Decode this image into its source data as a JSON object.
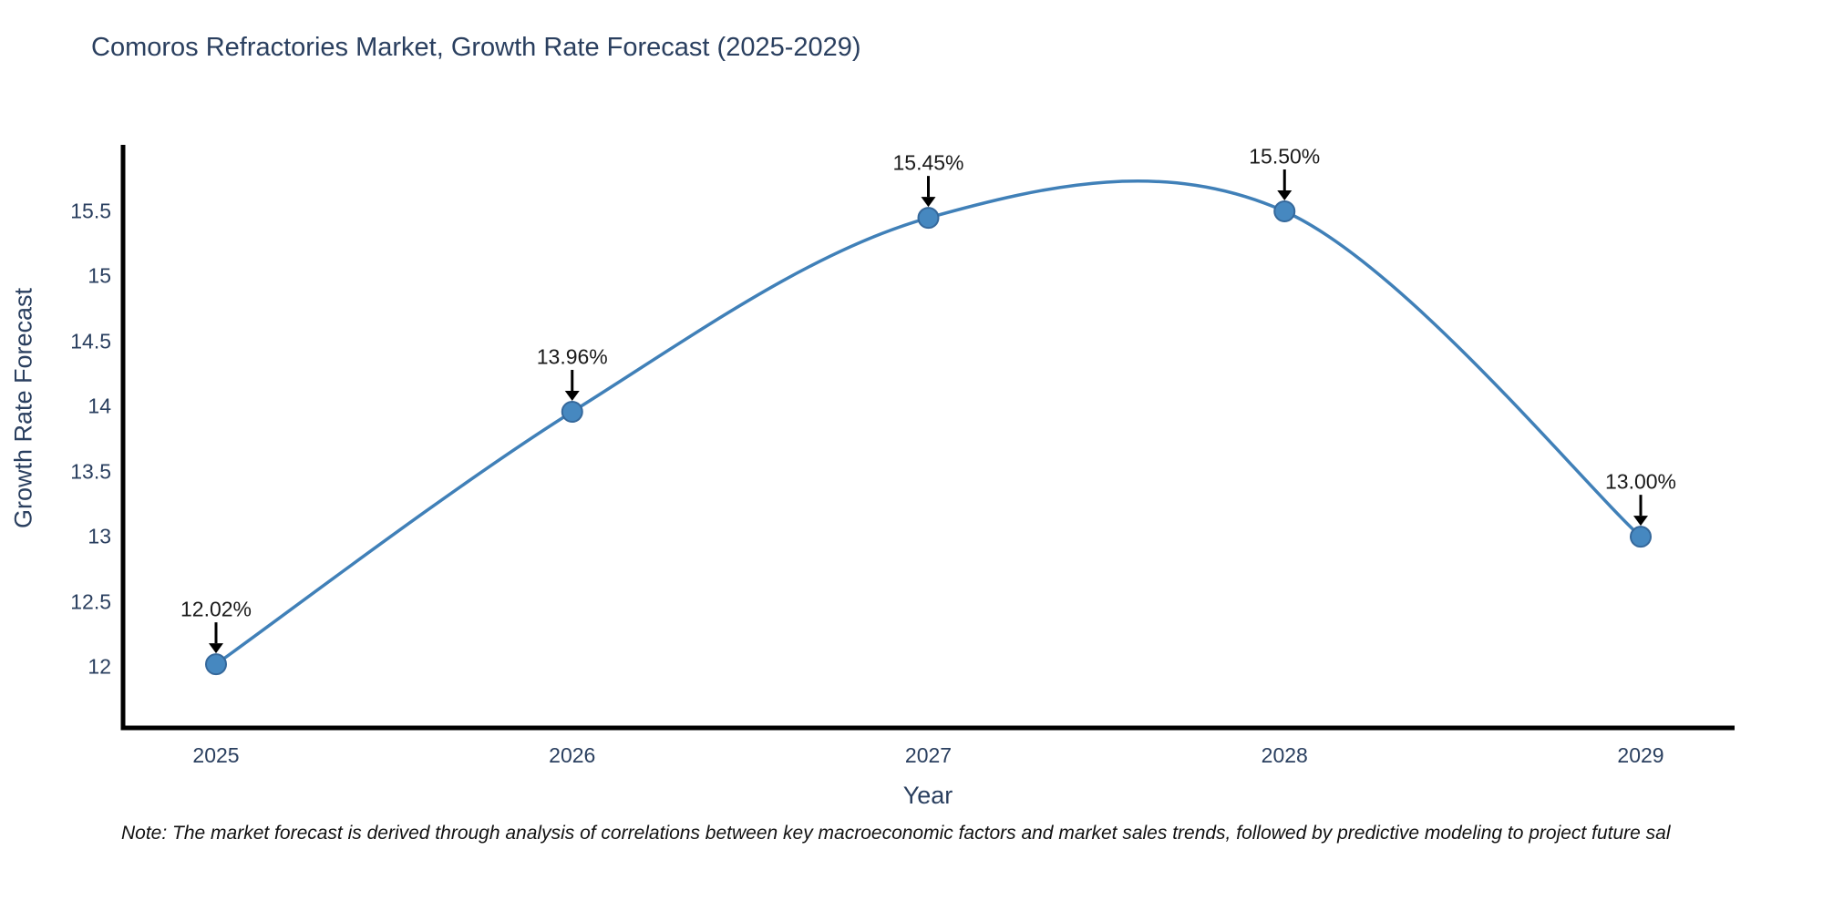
{
  "figure": {
    "note": "Note: The market forecast is derived through analysis of correlations between key macroeconomic factors and market sales trends, followed by predictive modeling to project future sal"
  },
  "chart_data": {
    "type": "line",
    "title": "Comoros Refractories Market, Growth Rate Forecast (2025-2029)",
    "xlabel": "Year",
    "ylabel": "Growth Rate Forecast",
    "categories": [
      "2025",
      "2026",
      "2027",
      "2028",
      "2029"
    ],
    "values": [
      12.02,
      13.96,
      15.45,
      15.5,
      13.0
    ],
    "point_labels": [
      "12.02%",
      "13.96%",
      "15.45%",
      "15.50%",
      "13.00%"
    ],
    "yticks": [
      12,
      12.5,
      13,
      13.5,
      14,
      14.5,
      15,
      15.5
    ],
    "ylim": [
      11.5,
      15.9
    ],
    "line_shape": "spline",
    "grid": false,
    "legend": "none",
    "annotations_style": "black-down-arrow-to-point",
    "colors": {
      "line": "#4080b8",
      "marker": "#4688c0",
      "marker_edge": "#35689b",
      "axis": "#000000",
      "text": "#2a3f5f",
      "annotation": "#1a1a1a"
    }
  }
}
